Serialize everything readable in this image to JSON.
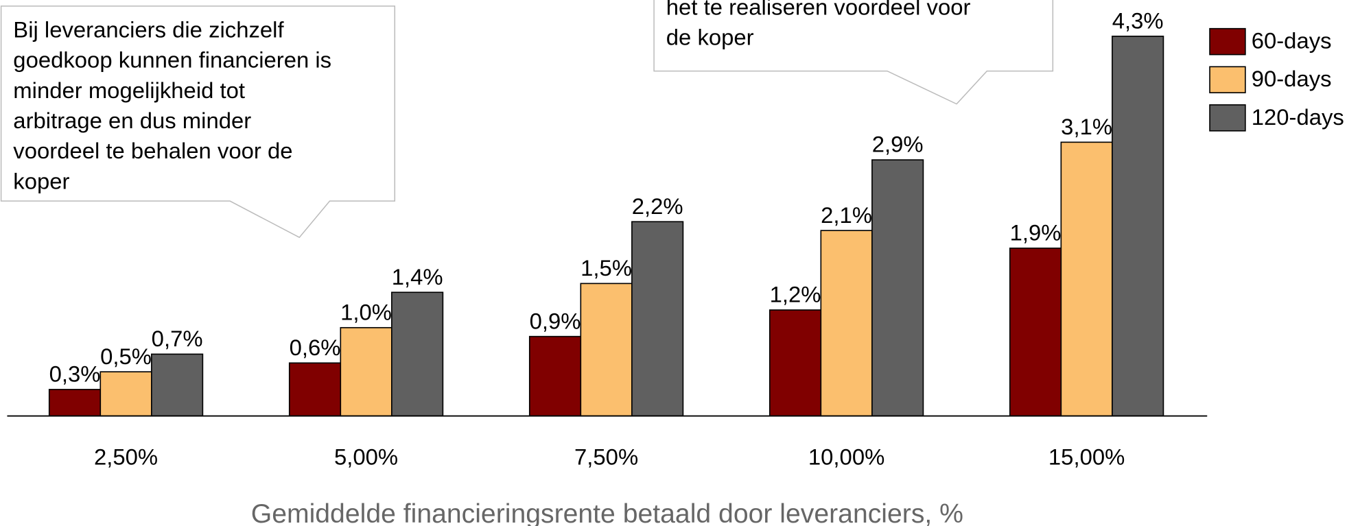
{
  "chart_data": {
    "type": "bar",
    "x_label": "Gemiddelde financieringsrente betaald door leveranciers, %",
    "categories": [
      "2,50%",
      "5,00%",
      "7,50%",
      "10,00%",
      "15,00%"
    ],
    "series": [
      {
        "name": "60-days",
        "color": "#800000",
        "values": [
          0.3,
          0.6,
          0.9,
          1.2,
          1.9
        ],
        "value_labels": [
          "0,3%",
          "0,6%",
          "0,9%",
          "1,2%",
          "1,9%"
        ]
      },
      {
        "name": "90-days",
        "color": "#fbbf6e",
        "values": [
          0.5,
          1.0,
          1.5,
          2.1,
          3.1
        ],
        "value_labels": [
          "0,5%",
          "1,0%",
          "1,5%",
          "2,1%",
          "3,1%"
        ]
      },
      {
        "name": "120-days",
        "color": "#606060",
        "values": [
          0.7,
          1.4,
          2.2,
          2.9,
          4.3
        ],
        "value_labels": [
          "0,7%",
          "1,4%",
          "2,2%",
          "2,9%",
          "4,3%"
        ]
      }
    ],
    "ylim": [
      0,
      4.5
    ],
    "annotations": [
      {
        "lines": [
          "Bij leveranciers die zichzelf",
          "goedkoop kunnen financieren is",
          "minder mogelijkheid tot",
          "arbitrage en dus minder",
          "voordeel te behalen voor de",
          "koper"
        ]
      },
      {
        "lines": [
          "het te realiseren voordeel voor",
          "de koper"
        ]
      }
    ]
  }
}
